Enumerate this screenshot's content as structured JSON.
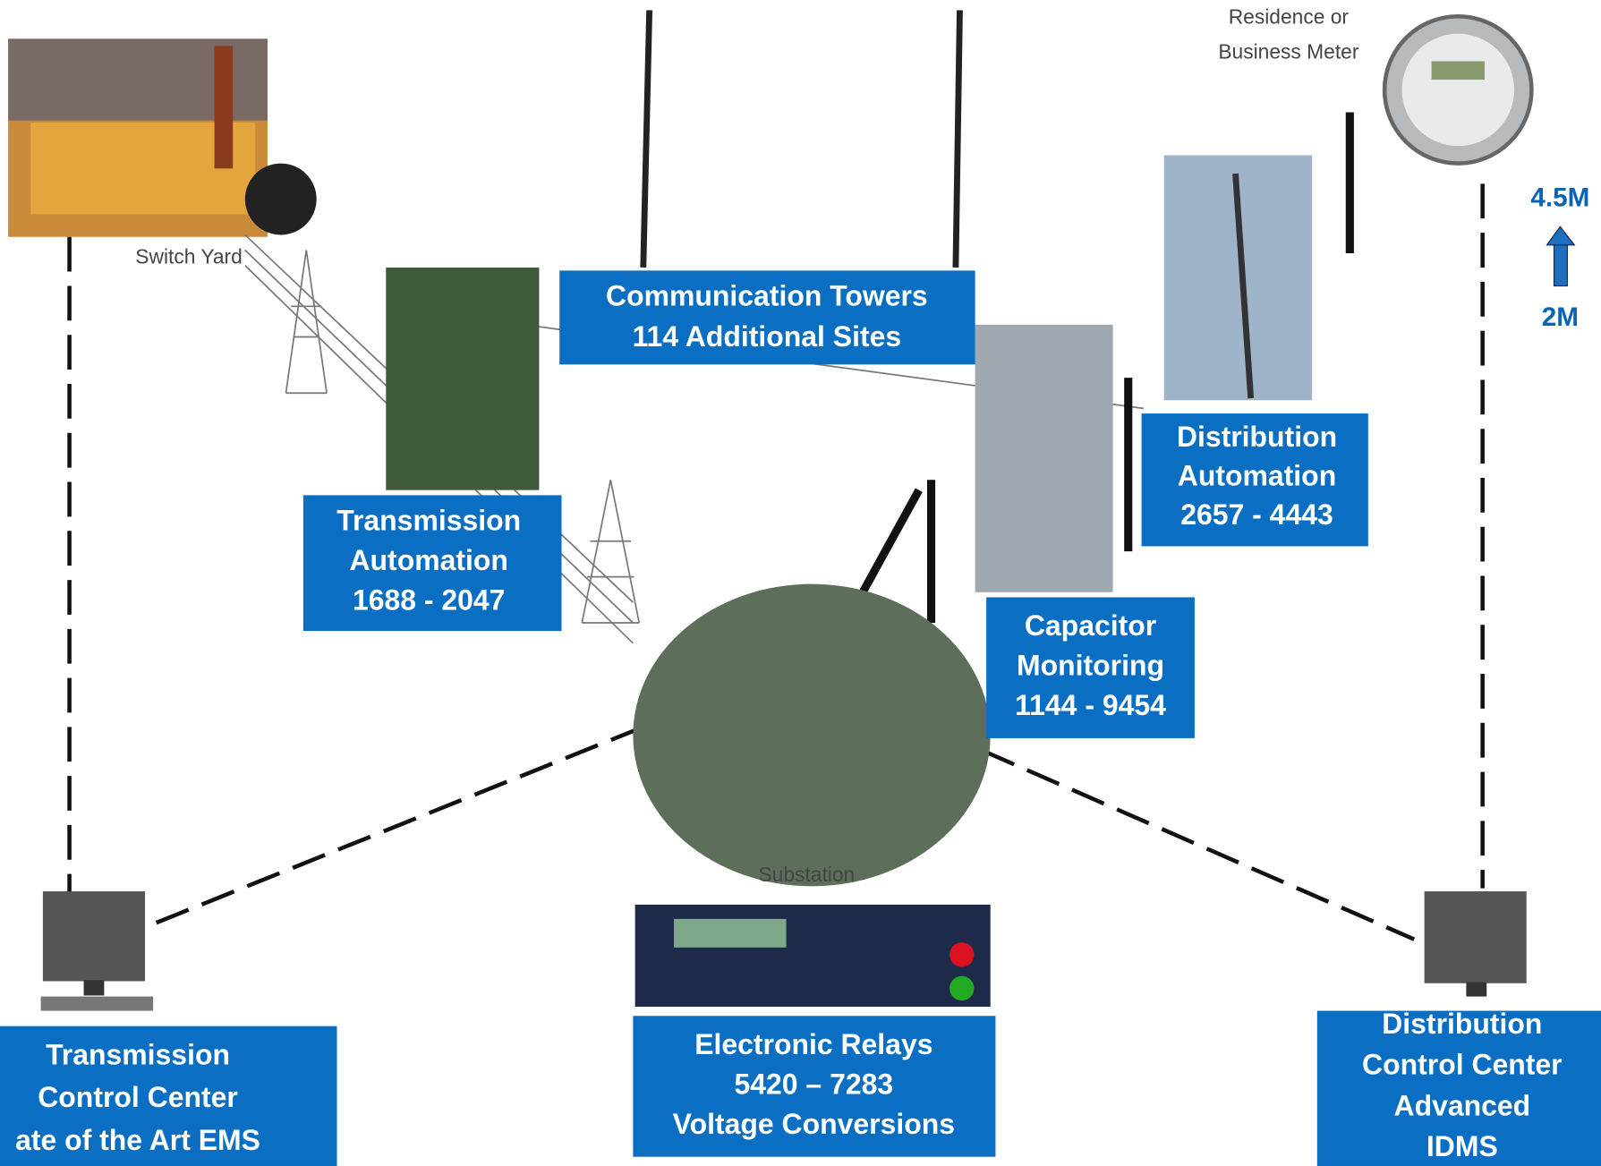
{
  "captions": {
    "meter": [
      "Residence or",
      "Business Meter"
    ],
    "switch_yard": "Switch Yard",
    "substation": "Substation",
    "growth_high": "4.5M",
    "growth_low": "2M"
  },
  "boxes": [
    {
      "lines": [
        "Communication Towers",
        "114  Additional Sites"
      ]
    },
    {
      "lines": [
        "Transmission",
        "Automation",
        "1688 - 2047"
      ]
    },
    {
      "lines": [
        "Distribution",
        "Automation",
        "2657 - 4443"
      ]
    },
    {
      "lines": [
        "Capacitor",
        "Monitoring",
        "1144 - 9454"
      ]
    },
    {
      "lines": [
        "Electronic Relays",
        "5420 – 7283",
        "Voltage Conversions"
      ]
    },
    {
      "lines": [
        "Transmission",
        "Control Center",
        "ate of the Art EMS"
      ]
    },
    {
      "lines": [
        "Distribution",
        "Control Center",
        "Advanced",
        "IDMS"
      ]
    }
  ]
}
